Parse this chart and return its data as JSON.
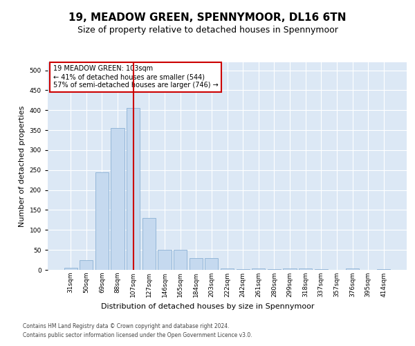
{
  "title": "19, MEADOW GREEN, SPENNYMOOR, DL16 6TN",
  "subtitle": "Size of property relative to detached houses in Spennymoor",
  "xlabel": "Distribution of detached houses by size in Spennymoor",
  "ylabel": "Number of detached properties",
  "categories": [
    "31sqm",
    "50sqm",
    "69sqm",
    "88sqm",
    "107sqm",
    "127sqm",
    "146sqm",
    "165sqm",
    "184sqm",
    "203sqm",
    "222sqm",
    "242sqm",
    "261sqm",
    "280sqm",
    "299sqm",
    "318sqm",
    "337sqm",
    "357sqm",
    "376sqm",
    "395sqm",
    "414sqm"
  ],
  "values": [
    5,
    25,
    245,
    355,
    405,
    130,
    50,
    50,
    30,
    30,
    4,
    1,
    4,
    1,
    4,
    4,
    1,
    0,
    4,
    0,
    1
  ],
  "bar_color": "#c5d9ef",
  "bar_edge_color": "#8ab0d4",
  "vline_index": 4,
  "vline_color": "#cc0000",
  "annotation_line1": "19 MEADOW GREEN: 103sqm",
  "annotation_line2": "← 41% of detached houses are smaller (544)",
  "annotation_line3": "57% of semi-detached houses are larger (746) →",
  "annotation_box_facecolor": "white",
  "annotation_box_edgecolor": "#cc0000",
  "ylim": [
    0,
    520
  ],
  "yticks": [
    0,
    50,
    100,
    150,
    200,
    250,
    300,
    350,
    400,
    450,
    500
  ],
  "plot_bgcolor": "#dce8f5",
  "footnote1": "Contains HM Land Registry data © Crown copyright and database right 2024.",
  "footnote2": "Contains public sector information licensed under the Open Government Licence v3.0.",
  "title_fontsize": 11,
  "subtitle_fontsize": 9,
  "label_fontsize": 8,
  "ylabel_fontsize": 8,
  "tick_fontsize": 6.5,
  "footnote_fontsize": 5.5,
  "annot_fontsize": 7
}
